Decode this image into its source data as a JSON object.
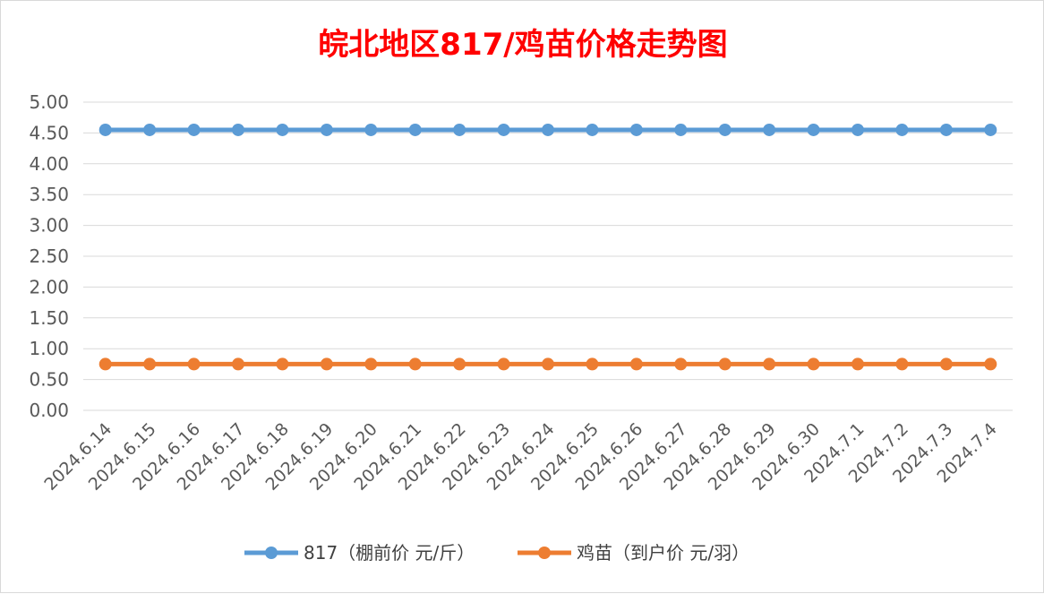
{
  "chart_data": {
    "type": "line",
    "title": "皖北地区817/鸡苗价格走势图",
    "xlabel": "",
    "ylabel": "",
    "categories": [
      "2024.6.14",
      "2024.6.15",
      "2024.6.16",
      "2024.6.17",
      "2024.6.18",
      "2024.6.19",
      "2024.6.20",
      "2024.6.21",
      "2024.6.22",
      "2024.6.23",
      "2024.6.24",
      "2024.6.25",
      "2024.6.26",
      "2024.6.27",
      "2024.6.28",
      "2024.6.29",
      "2024.6.30",
      "2024.7.1",
      "2024.7.2",
      "2024.7.3",
      "2024.7.4"
    ],
    "y_ticks": [
      "0.00",
      "0.50",
      "1.00",
      "1.50",
      "2.00",
      "2.50",
      "3.00",
      "3.50",
      "4.00",
      "4.50",
      "5.00"
    ],
    "ylim": [
      0,
      5
    ],
    "grid": true,
    "legend_position": "bottom",
    "series": [
      {
        "name": "817（棚前价 元/斤）",
        "color": "#5b9bd5",
        "values": [
          4.55,
          4.55,
          4.55,
          4.55,
          4.55,
          4.55,
          4.55,
          4.55,
          4.55,
          4.55,
          4.55,
          4.55,
          4.55,
          4.55,
          4.55,
          4.55,
          4.55,
          4.55,
          4.55,
          4.55,
          4.55
        ]
      },
      {
        "name": "鸡苗（到户价 元/羽）",
        "color": "#ed7d31",
        "values": [
          0.75,
          0.75,
          0.75,
          0.75,
          0.75,
          0.75,
          0.75,
          0.75,
          0.75,
          0.75,
          0.75,
          0.75,
          0.75,
          0.75,
          0.75,
          0.75,
          0.75,
          0.75,
          0.75,
          0.75,
          0.75
        ]
      }
    ]
  }
}
